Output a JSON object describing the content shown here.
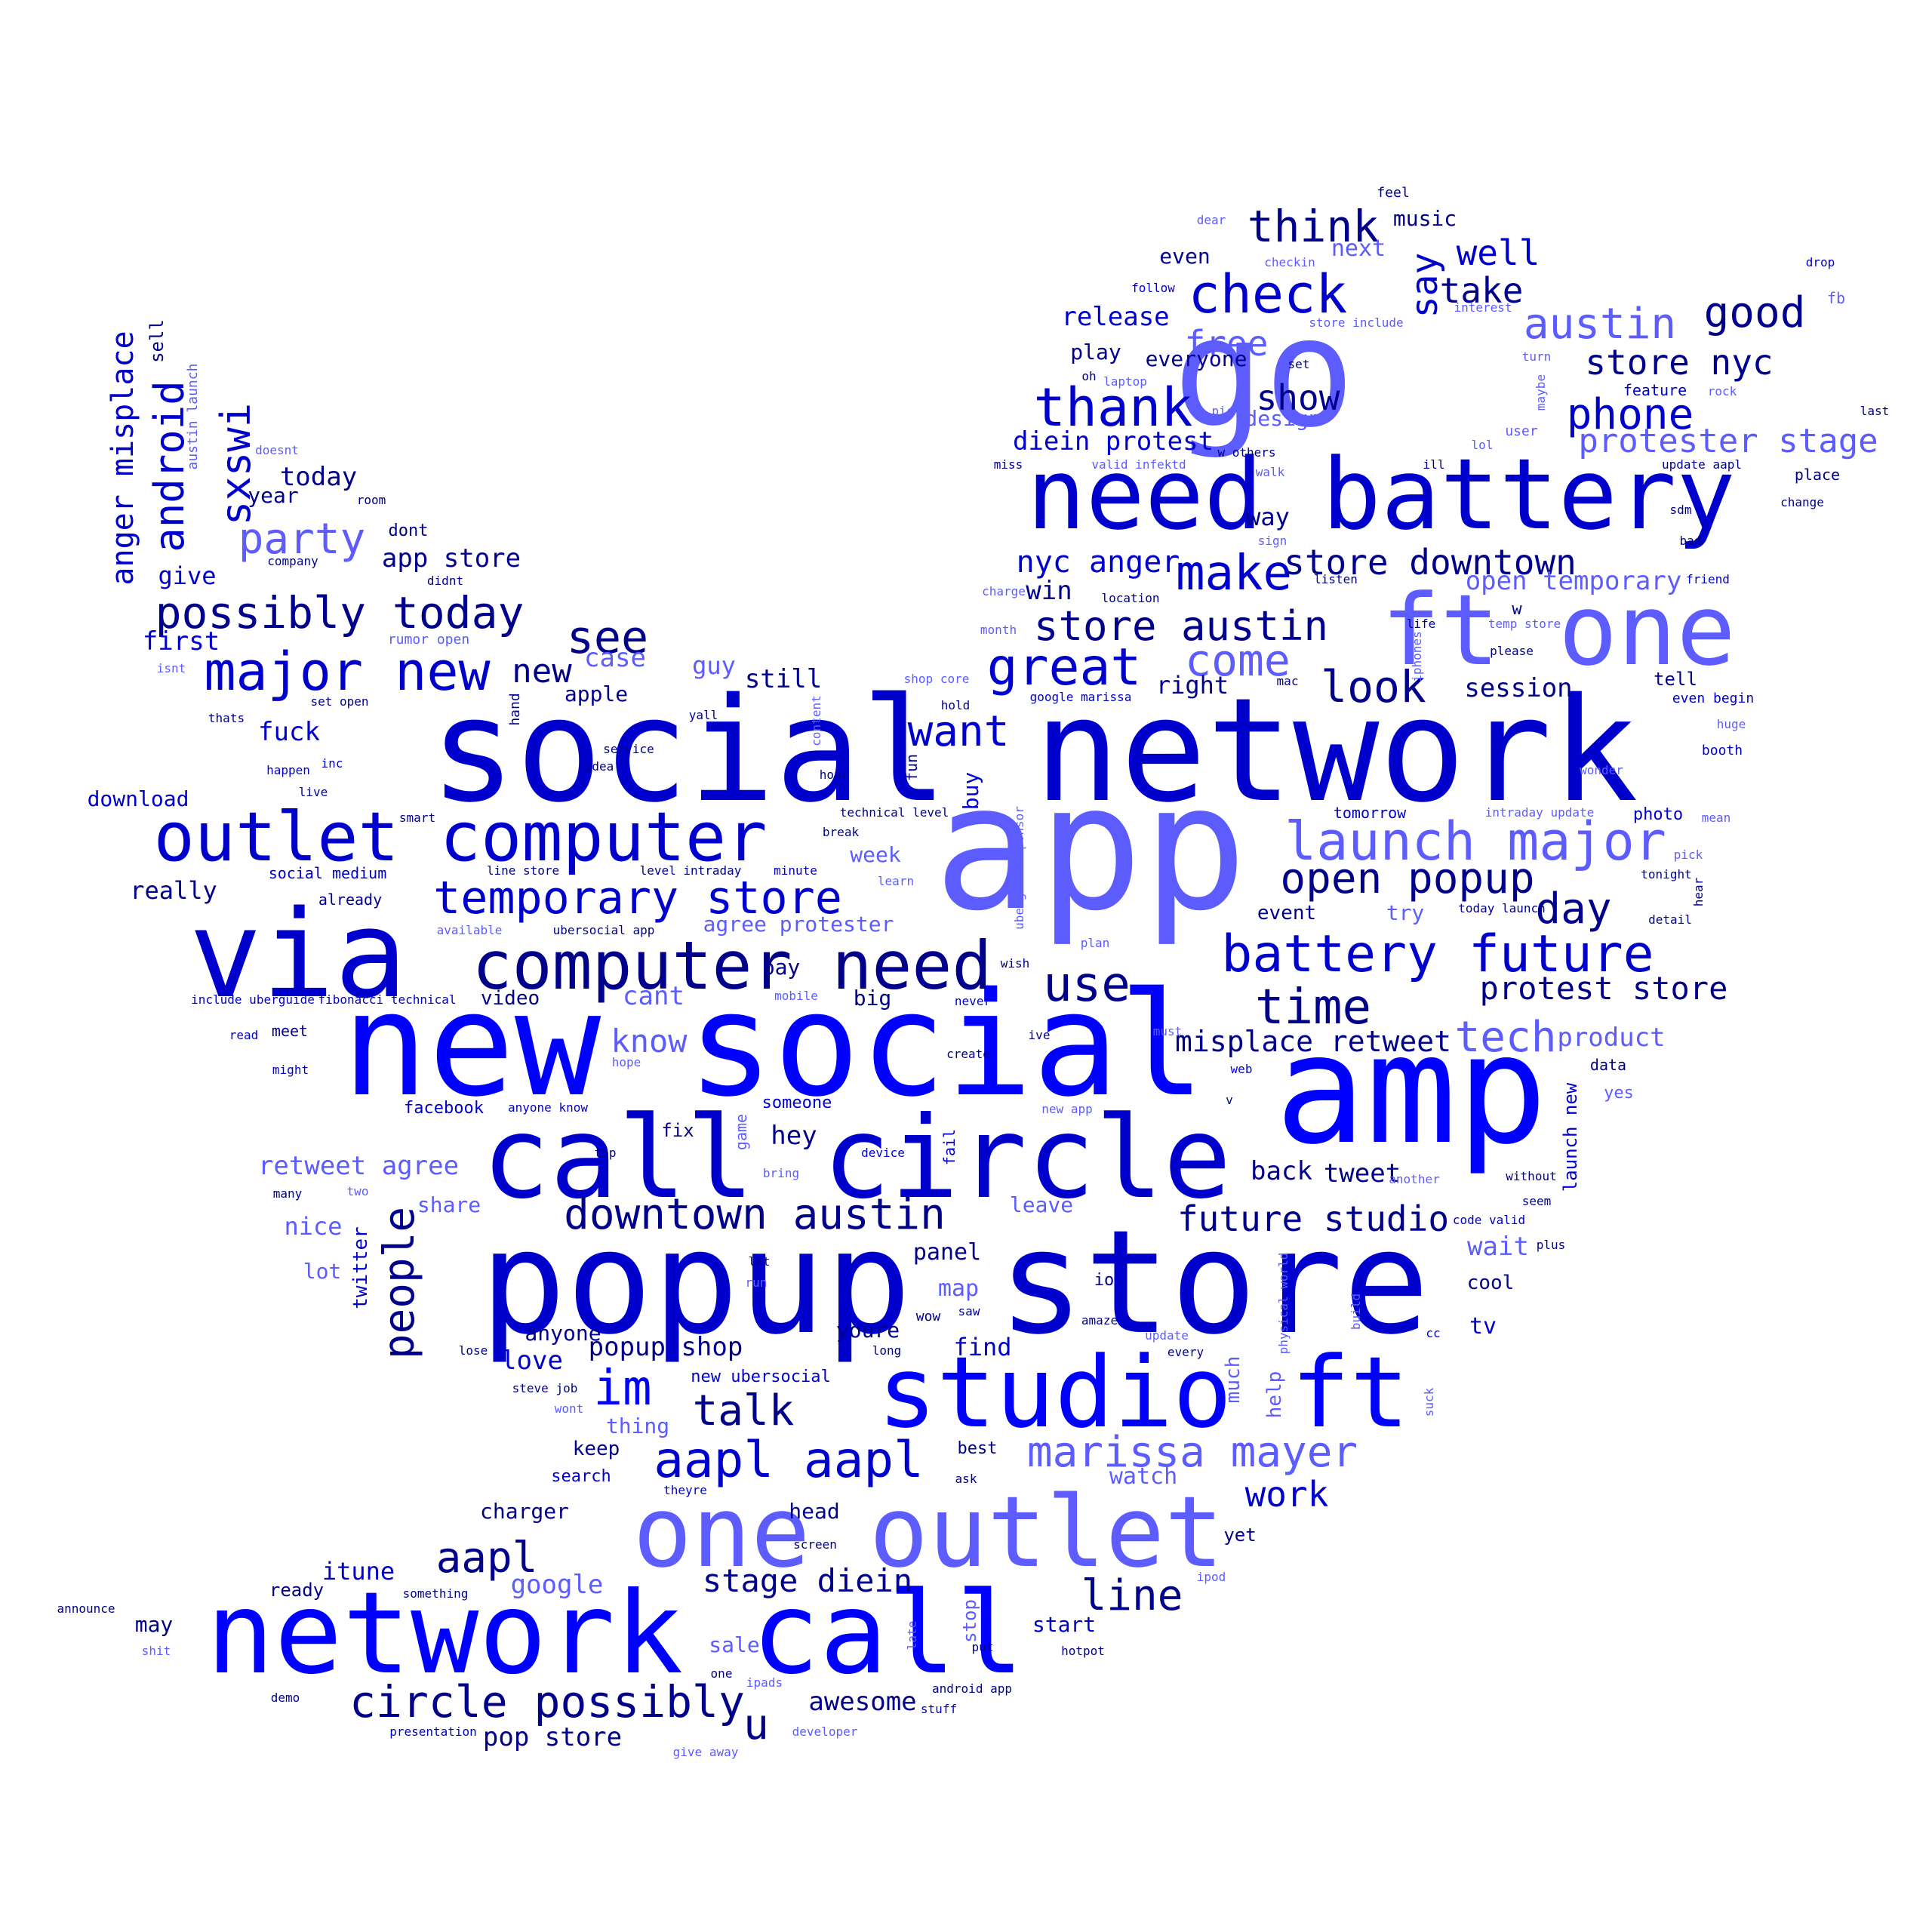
{
  "colors": {
    "dark": "#00008b",
    "medium": "#0000cd",
    "bright": "#0000ff",
    "light": "#5c5cff",
    "background": "#ffffff"
  },
  "words": [
    {
      "text": "social network",
      "c": "medium"
    },
    {
      "text": "app",
      "c": "light"
    },
    {
      "text": "new social",
      "c": "bright"
    },
    {
      "text": "popup store",
      "c": "medium"
    },
    {
      "text": "go",
      "c": "light"
    },
    {
      "text": "need battery",
      "c": "medium"
    },
    {
      "text": "amp",
      "c": "bright"
    },
    {
      "text": "via",
      "c": "medium"
    },
    {
      "text": "call circle",
      "c": "medium"
    },
    {
      "text": "network call",
      "c": "bright"
    },
    {
      "text": "one outlet",
      "c": "light"
    },
    {
      "text": "studio ft",
      "c": "bright"
    },
    {
      "text": "ft one",
      "c": "light"
    },
    {
      "text": "outlet computer",
      "c": "medium"
    },
    {
      "text": "computer need",
      "c": "dark"
    },
    {
      "text": "launch major",
      "c": "light"
    },
    {
      "text": "battery future",
      "c": "medium"
    },
    {
      "text": "major new",
      "c": "medium"
    },
    {
      "text": "temporary store",
      "c": "medium"
    },
    {
      "text": "check",
      "c": "medium"
    },
    {
      "text": "thank",
      "c": "medium"
    },
    {
      "text": "great",
      "c": "medium"
    },
    {
      "text": "possibly today",
      "c": "dark"
    },
    {
      "text": "downtown austin",
      "c": "dark"
    },
    {
      "text": "aapl aapl",
      "c": "medium"
    },
    {
      "text": "marissa mayer",
      "c": "light"
    },
    {
      "text": "circle possibly",
      "c": "dark"
    },
    {
      "text": "store austin",
      "c": "dark"
    },
    {
      "text": "open popup",
      "c": "dark"
    },
    {
      "text": "future studio",
      "c": "dark"
    },
    {
      "text": "time",
      "c": "dark"
    },
    {
      "text": "make",
      "c": "medium"
    },
    {
      "text": "use",
      "c": "dark"
    },
    {
      "text": "look",
      "c": "dark"
    },
    {
      "text": "come",
      "c": "light"
    },
    {
      "text": "think",
      "c": "dark"
    },
    {
      "text": "store downtown",
      "c": "dark"
    },
    {
      "text": "austin",
      "c": "light"
    },
    {
      "text": "phone",
      "c": "medium"
    },
    {
      "text": "good",
      "c": "dark"
    },
    {
      "text": "store nyc",
      "c": "dark"
    },
    {
      "text": "protester stage",
      "c": "light"
    },
    {
      "text": "protest store",
      "c": "dark"
    },
    {
      "text": "tech",
      "c": "light"
    },
    {
      "text": "misplace retweet",
      "c": "dark"
    },
    {
      "text": "day",
      "c": "dark"
    },
    {
      "text": "want",
      "c": "medium"
    },
    {
      "text": "see",
      "c": "dark"
    },
    {
      "text": "im",
      "c": "bright"
    },
    {
      "text": "talk",
      "c": "dark"
    },
    {
      "text": "aapl",
      "c": "dark"
    },
    {
      "text": "line",
      "c": "dark"
    },
    {
      "text": "work",
      "c": "medium"
    },
    {
      "text": "stage diein",
      "c": "dark"
    },
    {
      "text": "party",
      "c": "light"
    },
    {
      "text": "android",
      "c": "medium",
      "v": true
    },
    {
      "text": "sxswi",
      "c": "medium",
      "v": true
    },
    {
      "text": "anger misplace",
      "c": "medium",
      "v": true
    },
    {
      "text": "people",
      "c": "dark",
      "v": true
    },
    {
      "text": "say",
      "c": "medium",
      "v": true
    },
    {
      "text": "well",
      "c": "medium"
    },
    {
      "text": "take",
      "c": "dark"
    },
    {
      "text": "free",
      "c": "light"
    },
    {
      "text": "show",
      "c": "dark"
    },
    {
      "text": "release",
      "c": "medium"
    },
    {
      "text": "diein protest",
      "c": "medium"
    },
    {
      "text": "nyc anger",
      "c": "medium"
    },
    {
      "text": "open temporary",
      "c": "light"
    },
    {
      "text": "session",
      "c": "dark"
    },
    {
      "text": "know",
      "c": "light"
    },
    {
      "text": "u",
      "c": "dark"
    },
    {
      "text": "new",
      "c": "dark"
    },
    {
      "text": "app store",
      "c": "dark"
    },
    {
      "text": "today",
      "c": "dark"
    },
    {
      "text": "popup shop",
      "c": "dark"
    },
    {
      "text": "product",
      "c": "light"
    },
    {
      "text": "retweet agree",
      "c": "light"
    },
    {
      "text": "hey",
      "c": "dark"
    },
    {
      "text": "tweet",
      "c": "dark"
    },
    {
      "text": "back",
      "c": "dark"
    },
    {
      "text": "pop store",
      "c": "dark"
    },
    {
      "text": "itune",
      "c": "medium"
    },
    {
      "text": "google",
      "c": "light"
    },
    {
      "text": "awesome",
      "c": "dark"
    },
    {
      "text": "love",
      "c": "medium"
    },
    {
      "text": "still",
      "c": "dark"
    },
    {
      "text": "agree protester",
      "c": "light"
    },
    {
      "text": "cant",
      "c": "light"
    },
    {
      "text": "win",
      "c": "dark"
    },
    {
      "text": "music",
      "c": "dark"
    },
    {
      "text": "next",
      "c": "light"
    },
    {
      "text": "everyone",
      "c": "dark"
    },
    {
      "text": "even",
      "c": "dark"
    },
    {
      "text": "play",
      "c": "dark"
    },
    {
      "text": "design",
      "c": "light"
    },
    {
      "text": "way",
      "c": "dark"
    },
    {
      "text": "right",
      "c": "dark"
    },
    {
      "text": "watch",
      "c": "light"
    },
    {
      "text": "wait",
      "c": "light"
    },
    {
      "text": "first",
      "c": "medium"
    },
    {
      "text": "give",
      "c": "medium"
    },
    {
      "text": "year",
      "c": "dark"
    },
    {
      "text": "case",
      "c": "light"
    },
    {
      "text": "guy",
      "c": "light"
    },
    {
      "text": "fuck",
      "c": "medium"
    },
    {
      "text": "download",
      "c": "medium"
    },
    {
      "text": "really",
      "c": "dark"
    },
    {
      "text": "apple",
      "c": "dark"
    },
    {
      "text": "week",
      "c": "light"
    },
    {
      "text": "event",
      "c": "dark"
    },
    {
      "text": "try",
      "c": "light"
    },
    {
      "text": "video",
      "c": "dark"
    },
    {
      "text": "big",
      "c": "dark"
    },
    {
      "text": "pay",
      "c": "dark"
    },
    {
      "text": "panel",
      "c": "dark"
    },
    {
      "text": "map",
      "c": "light"
    },
    {
      "text": "find",
      "c": "medium"
    },
    {
      "text": "anyone",
      "c": "dark"
    },
    {
      "text": "youre",
      "c": "dark"
    },
    {
      "text": "keep",
      "c": "dark"
    },
    {
      "text": "thing",
      "c": "light"
    },
    {
      "text": "charger",
      "c": "dark"
    },
    {
      "text": "head",
      "c": "dark"
    },
    {
      "text": "start",
      "c": "medium"
    },
    {
      "text": "cool",
      "c": "dark"
    },
    {
      "text": "tv",
      "c": "medium"
    },
    {
      "text": "leave",
      "c": "light"
    },
    {
      "text": "share",
      "c": "light"
    },
    {
      "text": "nice",
      "c": "light"
    },
    {
      "text": "lot",
      "c": "light"
    },
    {
      "text": "may",
      "c": "dark"
    },
    {
      "text": "ready",
      "c": "dark"
    },
    {
      "text": "sale",
      "c": "light"
    },
    {
      "text": "tomorrow",
      "c": "medium"
    },
    {
      "text": "meet",
      "c": "dark"
    },
    {
      "text": "facebook",
      "c": "medium"
    },
    {
      "text": "fix",
      "c": "dark"
    },
    {
      "text": "someone",
      "c": "medium"
    },
    {
      "text": "yes",
      "c": "light"
    },
    {
      "text": "data",
      "c": "dark"
    },
    {
      "text": "photo",
      "c": "medium"
    },
    {
      "text": "tell",
      "c": "dark"
    },
    {
      "text": "dont",
      "c": "dark"
    },
    {
      "text": "twitter",
      "c": "medium",
      "v": true
    },
    {
      "text": "buy",
      "c": "medium",
      "v": true
    },
    {
      "text": "much",
      "c": "light",
      "v": true
    },
    {
      "text": "help",
      "c": "light",
      "v": true
    },
    {
      "text": "launch new",
      "c": "medium",
      "v": true
    },
    {
      "text": "stop",
      "c": "light",
      "v": true
    },
    {
      "text": "yet",
      "c": "dark"
    },
    {
      "text": "new ubersocial",
      "c": "medium"
    },
    {
      "text": "search",
      "c": "medium"
    },
    {
      "text": "best",
      "c": "dark"
    },
    {
      "text": "io",
      "c": "dark"
    },
    {
      "text": "wow",
      "c": "dark"
    },
    {
      "text": "feel",
      "c": "dark"
    },
    {
      "text": "dear",
      "c": "light"
    },
    {
      "text": "checkin",
      "c": "light"
    },
    {
      "text": "follow",
      "c": "medium"
    },
    {
      "text": "store include",
      "c": "light"
    },
    {
      "text": "interest",
      "c": "light"
    },
    {
      "text": "drop",
      "c": "medium"
    },
    {
      "text": "fb",
      "c": "light"
    },
    {
      "text": "oh",
      "c": "dark"
    },
    {
      "text": "laptop",
      "c": "light"
    },
    {
      "text": "set",
      "c": "dark"
    },
    {
      "text": "turn",
      "c": "light"
    },
    {
      "text": "feature",
      "c": "medium"
    },
    {
      "text": "rock",
      "c": "light"
    },
    {
      "text": "last",
      "c": "dark"
    },
    {
      "text": "pic",
      "c": "light"
    },
    {
      "text": "user",
      "c": "light"
    },
    {
      "text": "lol",
      "c": "light"
    },
    {
      "text": "miss",
      "c": "dark"
    },
    {
      "text": "valid infektd",
      "c": "light"
    },
    {
      "text": "w others",
      "c": "dark"
    },
    {
      "text": "ill",
      "c": "dark"
    },
    {
      "text": "walk",
      "c": "light"
    },
    {
      "text": "update aapl",
      "c": "dark"
    },
    {
      "text": "place",
      "c": "dark"
    },
    {
      "text": "change",
      "c": "dark"
    },
    {
      "text": "sdm",
      "c": "dark"
    },
    {
      "text": "bad",
      "c": "dark"
    },
    {
      "text": "sign",
      "c": "light"
    },
    {
      "text": "listen",
      "c": "dark"
    },
    {
      "text": "friend",
      "c": "medium"
    },
    {
      "text": "charge",
      "c": "light"
    },
    {
      "text": "location",
      "c": "dark"
    },
    {
      "text": "w",
      "c": "dark"
    },
    {
      "text": "month",
      "c": "light"
    },
    {
      "text": "life",
      "c": "dark"
    },
    {
      "text": "temp store",
      "c": "light"
    },
    {
      "text": "please",
      "c": "dark"
    },
    {
      "text": "shop core",
      "c": "light"
    },
    {
      "text": "hold",
      "c": "dark"
    },
    {
      "text": "google marissa",
      "c": "medium"
    },
    {
      "text": "mac",
      "c": "dark"
    },
    {
      "text": "even begin",
      "c": "medium"
    },
    {
      "text": "huge",
      "c": "light"
    },
    {
      "text": "booth",
      "c": "medium"
    },
    {
      "text": "wonder",
      "c": "light"
    },
    {
      "text": "mean",
      "c": "light"
    },
    {
      "text": "pick",
      "c": "light"
    },
    {
      "text": "tonight",
      "c": "dark"
    },
    {
      "text": "detail",
      "c": "dark"
    },
    {
      "text": "today launch",
      "c": "dark"
    },
    {
      "text": "intraday update",
      "c": "light"
    },
    {
      "text": "technical level",
      "c": "dark"
    },
    {
      "text": "break",
      "c": "dark"
    },
    {
      "text": "hour",
      "c": "dark"
    },
    {
      "text": "minute",
      "c": "medium"
    },
    {
      "text": "learn",
      "c": "light"
    },
    {
      "text": "plan",
      "c": "light"
    },
    {
      "text": "never",
      "c": "medium"
    },
    {
      "text": "ive",
      "c": "dark"
    },
    {
      "text": "must",
      "c": "light"
    },
    {
      "text": "create",
      "c": "dark"
    },
    {
      "text": "web",
      "c": "medium"
    },
    {
      "text": "v",
      "c": "dark"
    },
    {
      "text": "new app",
      "c": "light"
    },
    {
      "text": "another",
      "c": "light"
    },
    {
      "text": "without",
      "c": "dark"
    },
    {
      "text": "seem",
      "c": "dark"
    },
    {
      "text": "code valid",
      "c": "medium"
    },
    {
      "text": "plus",
      "c": "dark"
    },
    {
      "text": "device",
      "c": "medium"
    },
    {
      "text": "top",
      "c": "dark"
    },
    {
      "text": "bring",
      "c": "light"
    },
    {
      "text": "let",
      "c": "dark"
    },
    {
      "text": "run",
      "c": "light"
    },
    {
      "text": "saw",
      "c": "dark"
    },
    {
      "text": "amaze",
      "c": "dark"
    },
    {
      "text": "update",
      "c": "light"
    },
    {
      "text": "every",
      "c": "dark"
    },
    {
      "text": "cc",
      "c": "medium"
    },
    {
      "text": "long",
      "c": "dark"
    },
    {
      "text": "ask",
      "c": "dark"
    },
    {
      "text": "theyre",
      "c": "medium"
    },
    {
      "text": "screen",
      "c": "dark"
    },
    {
      "text": "ipod",
      "c": "light"
    },
    {
      "text": "put",
      "c": "dark"
    },
    {
      "text": "hotpot",
      "c": "dark"
    },
    {
      "text": "android app",
      "c": "dark"
    },
    {
      "text": "stuff",
      "c": "medium"
    },
    {
      "text": "developer",
      "c": "light"
    },
    {
      "text": "give away",
      "c": "light"
    },
    {
      "text": "ipads",
      "c": "light"
    },
    {
      "text": "one",
      "c": "dark"
    },
    {
      "text": "something",
      "c": "dark"
    },
    {
      "text": "presentation",
      "c": "medium"
    },
    {
      "text": "demo",
      "c": "dark"
    },
    {
      "text": "shit",
      "c": "light"
    },
    {
      "text": "announce",
      "c": "dark"
    },
    {
      "text": "steve job",
      "c": "dark"
    },
    {
      "text": "wont",
      "c": "light"
    },
    {
      "text": "lose",
      "c": "dark"
    },
    {
      "text": "many",
      "c": "dark"
    },
    {
      "text": "two",
      "c": "light"
    },
    {
      "text": "anyone know",
      "c": "medium"
    },
    {
      "text": "hope",
      "c": "light"
    },
    {
      "text": "read",
      "c": "medium"
    },
    {
      "text": "might",
      "c": "medium"
    },
    {
      "text": "include uberguide",
      "c": "medium"
    },
    {
      "text": "fibonacci technical",
      "c": "medium"
    },
    {
      "text": "available",
      "c": "light"
    },
    {
      "text": "ubersocial app",
      "c": "dark"
    },
    {
      "text": "mobile",
      "c": "light"
    },
    {
      "text": "social medium",
      "c": "medium"
    },
    {
      "text": "already",
      "c": "dark"
    },
    {
      "text": "line store",
      "c": "dark"
    },
    {
      "text": "level intraday",
      "c": "dark"
    },
    {
      "text": "smart",
      "c": "dark"
    },
    {
      "text": "live",
      "c": "dark"
    },
    {
      "text": "happen",
      "c": "medium"
    },
    {
      "text": "inc",
      "c": "medium"
    },
    {
      "text": "idea",
      "c": "dark"
    },
    {
      "text": "service",
      "c": "dark"
    },
    {
      "text": "thats",
      "c": "dark"
    },
    {
      "text": "set open",
      "c": "dark"
    },
    {
      "text": "isnt",
      "c": "light"
    },
    {
      "text": "yall",
      "c": "dark"
    },
    {
      "text": "rumor open",
      "c": "light"
    },
    {
      "text": "company",
      "c": "dark"
    },
    {
      "text": "didnt",
      "c": "dark"
    },
    {
      "text": "room",
      "c": "dark"
    },
    {
      "text": "doesnt",
      "c": "light"
    },
    {
      "text": "sell",
      "c": "dark",
      "v": true
    },
    {
      "text": "austin launch",
      "c": "light",
      "v": true
    },
    {
      "text": "hand",
      "c": "dark",
      "v": true
    },
    {
      "text": "content",
      "c": "light",
      "v": true
    },
    {
      "text": "fun",
      "c": "dark",
      "v": true
    },
    {
      "text": "uberguide sponsor",
      "c": "light",
      "v": true
    },
    {
      "text": "wish",
      "c": "dark"
    },
    {
      "text": "game",
      "c": "light",
      "v": true
    },
    {
      "text": "fail",
      "c": "medium",
      "v": true
    },
    {
      "text": "late",
      "c": "light",
      "v": true
    },
    {
      "text": "maybe",
      "c": "light",
      "v": true
    },
    {
      "text": "iphones",
      "c": "light",
      "v": true
    },
    {
      "text": "hear",
      "c": "dark",
      "v": true
    },
    {
      "text": "physical world",
      "c": "light",
      "v": true
    },
    {
      "text": "build",
      "c": "light",
      "v": true
    },
    {
      "text": "suck",
      "c": "light",
      "v": true
    }
  ]
}
